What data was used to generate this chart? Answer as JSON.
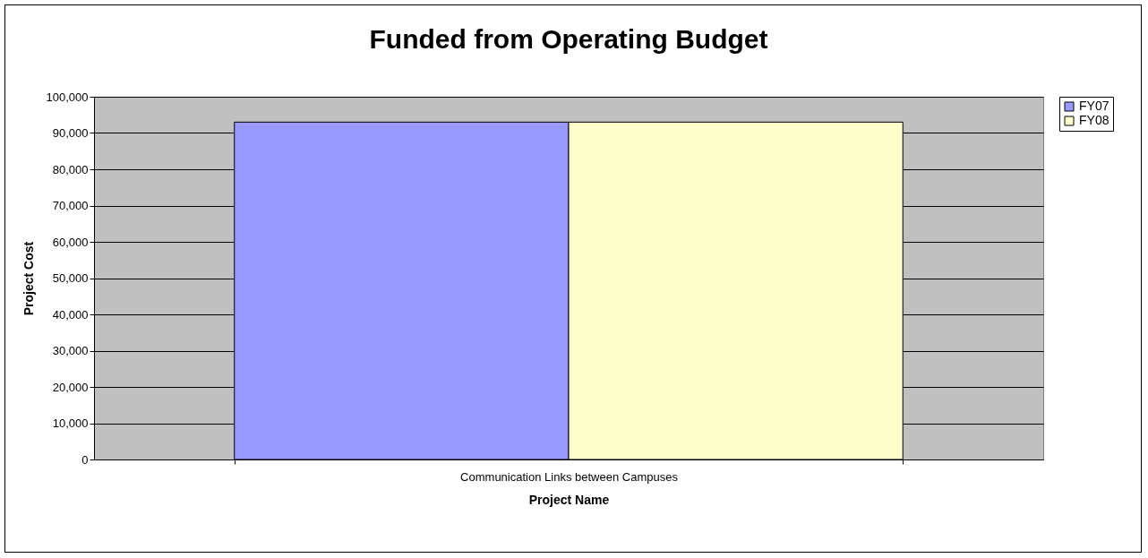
{
  "chart_data": {
    "type": "bar",
    "title": "Funded from Operating Budget",
    "xlabel": "Project Name",
    "ylabel": "Project Cost",
    "categories": [
      "Communication Links between Campuses"
    ],
    "series": [
      {
        "name": "FY07",
        "color": "#9999ff",
        "values": [
          93000
        ]
      },
      {
        "name": "FY08",
        "color": "#ffffcc",
        "values": [
          93000
        ]
      }
    ],
    "ylim": [
      0,
      100000
    ],
    "yticks": [
      0,
      {
        "value": 10000,
        "label": "10,000"
      },
      {
        "value": 20000,
        "label": "20,000"
      },
      {
        "value": 30000,
        "label": "30,000"
      },
      {
        "value": 40000,
        "label": "40,000"
      },
      {
        "value": 50000,
        "label": "50,000"
      },
      {
        "value": 60000,
        "label": "60,000"
      },
      {
        "value": 70000,
        "label": "70,000"
      },
      {
        "value": 80000,
        "label": "80,000"
      },
      {
        "value": 90000,
        "label": "90,000"
      },
      {
        "value": 100000,
        "label": "100,000"
      }
    ],
    "grid": "y",
    "legend": "right"
  }
}
